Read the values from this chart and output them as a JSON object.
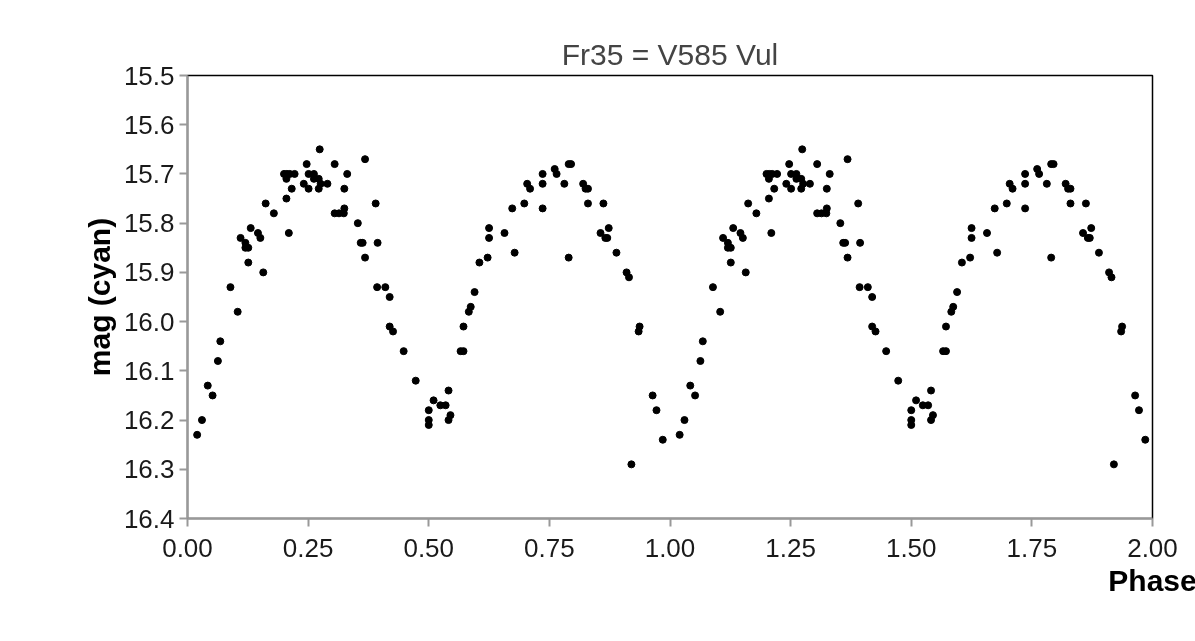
{
  "chart_data": {
    "type": "scatter",
    "title": "Fr35 = V585 Vul",
    "xlabel": "Phase",
    "ylabel": "mag (cyan)",
    "xlim": [
      0,
      2
    ],
    "ylim": [
      16.4,
      15.5
    ],
    "xticks": [
      {
        "value": 0,
        "label": "0.00"
      },
      {
        "value": 0.25,
        "label": "0.25"
      },
      {
        "value": 0.5,
        "label": "0.50"
      },
      {
        "value": 0.75,
        "label": "0.75"
      },
      {
        "value": 1,
        "label": "1.00"
      },
      {
        "value": 1.25,
        "label": "1.25"
      },
      {
        "value": 1.5,
        "label": "1.50"
      },
      {
        "value": 1.75,
        "label": "1.75"
      },
      {
        "value": 2,
        "label": "2.00"
      }
    ],
    "yticks": [
      15.5,
      15.6,
      15.7,
      15.8,
      15.9,
      {
        "value": 16,
        "label": "16.0"
      },
      16.1,
      16.2,
      16.3,
      16.4
    ],
    "grid": false,
    "marker": "circle",
    "series": [
      {
        "color": "#000000",
        "x": [
          0.02,
          0.03,
          0.042,
          0.052,
          0.063,
          0.068,
          0.089,
          0.104,
          0.11,
          0.12,
          0.12,
          0.126,
          0.126,
          0.131,
          0.146,
          0.151,
          0.157,
          0.162,
          0.179,
          0.2,
          0.205,
          0.205,
          0.206,
          0.21,
          0.212,
          0.216,
          0.222,
          0.241,
          0.247,
          0.251,
          0.251,
          0.262,
          0.262,
          0.272,
          0.272,
          0.274,
          0.276,
          0.29,
          0.305,
          0.305,
          0.314,
          0.324,
          0.325,
          0.325,
          0.331,
          0.353,
          0.359,
          0.363,
          0.368,
          0.368,
          0.39,
          0.394,
          0.393,
          0.41,
          0.419,
          0.419,
          0.426,
          0.448,
          0.473,
          0.5,
          0.5,
          0.5,
          0.51,
          0.524,
          0.535,
          0.541,
          0.541,
          0.545,
          0.566,
          0.572,
          0.572,
          0.583,
          0.587,
          0.595,
          0.605,
          0.622,
          0.625,
          0.625,
          0.657,
          0.673,
          0.678,
          0.698,
          0.704,
          0.71,
          0.736,
          0.736,
          0.736,
          0.761,
          0.765,
          0.781,
          0.79,
          0.795,
          0.79,
          0.82,
          0.825,
          0.83,
          0.83,
          0.862,
          0.856,
          0.866,
          0.87,
          0.873,
          0.889,
          0.91,
          0.915,
          0.92,
          0.937,
          0.935,
          0.964,
          0.972,
          0.985,
          1.02,
          1.03,
          1.042,
          1.052,
          1.063,
          1.068,
          1.089,
          1.104,
          1.11,
          1.12,
          1.12,
          1.126,
          1.126,
          1.131,
          1.146,
          1.151,
          1.157,
          1.162,
          1.179,
          1.2,
          1.205,
          1.205,
          1.206,
          1.21,
          1.212,
          1.216,
          1.222,
          1.241,
          1.247,
          1.251,
          1.251,
          1.262,
          1.262,
          1.272,
          1.272,
          1.274,
          1.276,
          1.29,
          1.305,
          1.305,
          1.314,
          1.324,
          1.325,
          1.325,
          1.331,
          1.353,
          1.359,
          1.363,
          1.368,
          1.368,
          1.39,
          1.394,
          1.393,
          1.41,
          1.419,
          1.419,
          1.426,
          1.448,
          1.473,
          1.5,
          1.5,
          1.5,
          1.51,
          1.524,
          1.535,
          1.541,
          1.541,
          1.545,
          1.566,
          1.572,
          1.572,
          1.583,
          1.587,
          1.595,
          1.605,
          1.622,
          1.625,
          1.625,
          1.657,
          1.673,
          1.678,
          1.698,
          1.704,
          1.71,
          1.736,
          1.736,
          1.736,
          1.761,
          1.765,
          1.781,
          1.79,
          1.795,
          1.79,
          1.82,
          1.825,
          1.83,
          1.83,
          1.862,
          1.856,
          1.866,
          1.87,
          1.873,
          1.889,
          1.91,
          1.915,
          1.92,
          1.937,
          1.935,
          1.964,
          1.972,
          1.985
        ],
        "values": [
          16.23,
          16.2,
          16.13,
          16.15,
          16.08,
          16.04,
          15.93,
          15.98,
          15.83,
          15.84,
          15.85,
          15.85,
          15.88,
          15.81,
          15.82,
          15.83,
          15.9,
          15.76,
          15.78,
          15.7,
          15.75,
          15.71,
          15.7,
          15.82,
          15.7,
          15.73,
          15.7,
          15.72,
          15.68,
          15.7,
          15.73,
          15.7,
          15.71,
          15.71,
          15.73,
          15.65,
          15.72,
          15.72,
          15.68,
          15.78,
          15.78,
          15.78,
          15.77,
          15.73,
          15.7,
          15.8,
          15.84,
          15.84,
          15.67,
          15.87,
          15.76,
          15.84,
          15.93,
          15.93,
          15.95,
          16.01,
          16.02,
          16.06,
          16.12,
          16.18,
          16.2,
          16.21,
          16.16,
          16.17,
          16.17,
          16.14,
          16.2,
          16.19,
          16.06,
          16.06,
          16.01,
          15.98,
          15.97,
          15.94,
          15.88,
          15.87,
          15.83,
          15.81,
          15.82,
          15.77,
          15.86,
          15.76,
          15.72,
          15.73,
          15.72,
          15.7,
          15.77,
          15.69,
          15.7,
          15.72,
          15.68,
          15.68,
          15.87,
          15.72,
          15.73,
          15.73,
          15.76,
          15.76,
          15.82,
          15.83,
          15.83,
          15.81,
          15.86,
          15.9,
          15.91,
          16.29,
          16.01,
          16.02,
          16.15,
          16.18,
          16.24,
          16.23,
          16.2,
          16.13,
          16.15,
          16.08,
          16.04,
          15.93,
          15.98,
          15.83,
          15.84,
          15.85,
          15.85,
          15.88,
          15.81,
          15.82,
          15.83,
          15.9,
          15.76,
          15.78,
          15.7,
          15.75,
          15.71,
          15.7,
          15.82,
          15.7,
          15.73,
          15.7,
          15.72,
          15.68,
          15.7,
          15.73,
          15.7,
          15.71,
          15.71,
          15.73,
          15.65,
          15.72,
          15.72,
          15.68,
          15.78,
          15.78,
          15.78,
          15.77,
          15.73,
          15.7,
          15.8,
          15.84,
          15.84,
          15.67,
          15.87,
          15.76,
          15.84,
          15.93,
          15.93,
          15.95,
          16.01,
          16.02,
          16.06,
          16.12,
          16.18,
          16.2,
          16.21,
          16.16,
          16.17,
          16.17,
          16.14,
          16.2,
          16.19,
          16.06,
          16.06,
          16.01,
          15.98,
          15.97,
          15.94,
          15.88,
          15.87,
          15.83,
          15.81,
          15.82,
          15.77,
          15.86,
          15.76,
          15.72,
          15.73,
          15.72,
          15.7,
          15.77,
          15.69,
          15.7,
          15.72,
          15.68,
          15.68,
          15.87,
          15.72,
          15.73,
          15.73,
          15.76,
          15.76,
          15.82,
          15.83,
          15.83,
          15.81,
          15.86,
          15.9,
          15.91,
          16.29,
          16.01,
          16.02,
          16.15,
          16.18,
          16.24
        ]
      }
    ]
  }
}
